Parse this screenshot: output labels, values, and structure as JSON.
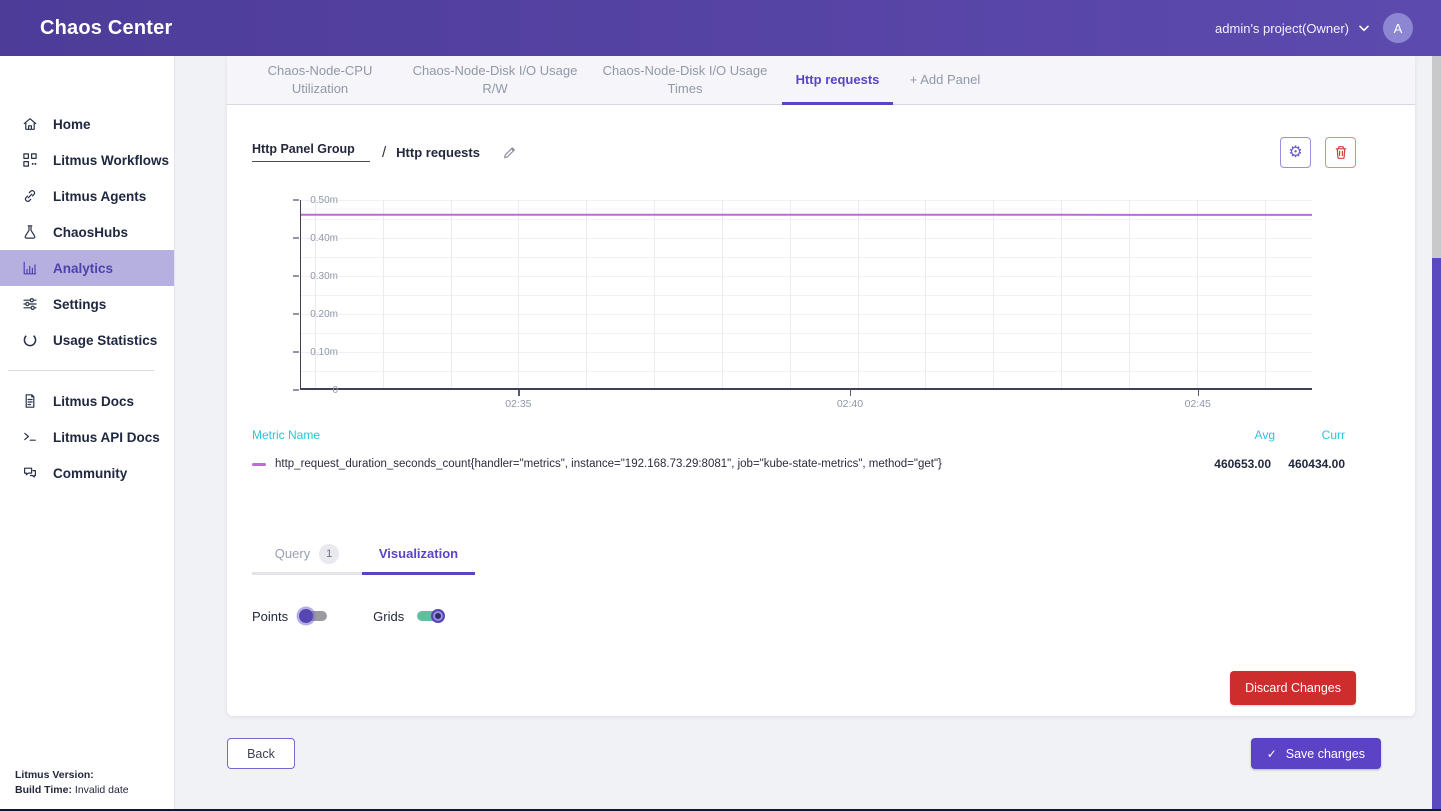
{
  "header": {
    "brand": "Chaos Center",
    "project": "admin's project(Owner)",
    "avatar": "A"
  },
  "sidebar": {
    "items": [
      {
        "id": "home",
        "label": "Home",
        "icon": "home-icon",
        "active": false
      },
      {
        "id": "workflows",
        "label": "Litmus Workflows",
        "icon": "workflows-icon",
        "active": false
      },
      {
        "id": "agents",
        "label": "Litmus Agents",
        "icon": "link-icon",
        "active": false
      },
      {
        "id": "chaoshubs",
        "label": "ChaosHubs",
        "icon": "flask-icon",
        "active": false
      },
      {
        "id": "analytics",
        "label": "Analytics",
        "icon": "bar-chart-icon",
        "active": true
      },
      {
        "id": "settings",
        "label": "Settings",
        "icon": "sliders-icon",
        "active": false
      },
      {
        "id": "usage",
        "label": "Usage Statistics",
        "icon": "loader-circle-icon",
        "active": false
      }
    ],
    "docs_items": [
      {
        "id": "docs",
        "label": "Litmus Docs",
        "icon": "document-icon",
        "active": false
      },
      {
        "id": "apidocs",
        "label": "Litmus API Docs",
        "icon": "terminal-icon",
        "active": false
      },
      {
        "id": "community",
        "label": "Community",
        "icon": "chat-bubbles-icon",
        "active": false
      }
    ],
    "version_label": "Litmus Version:",
    "build_label": "Build Time:",
    "build_value": "Invalid date"
  },
  "tabs": {
    "items": [
      {
        "label": "Chaos-Node-CPU Utilization",
        "active": false
      },
      {
        "label": "Chaos-Node-Disk I/O Usage R/W",
        "active": false
      },
      {
        "label": "Chaos-Node-Disk I/O Usage Times",
        "active": false
      },
      {
        "label": "Http requests",
        "active": true
      },
      {
        "label": "+ Add Panel",
        "active": false
      }
    ]
  },
  "panel": {
    "group_name": "Http Panel Group",
    "separator": "/",
    "panel_name": "Http requests"
  },
  "legend": {
    "metric_header": "Metric Name",
    "avg_header": "Avg",
    "curr_header": "Curr"
  },
  "subtabs": {
    "query_label": "Query",
    "query_count": "1",
    "visualization_label": "Visualization"
  },
  "toggles": {
    "points_label": "Points",
    "points_on": false,
    "grids_label": "Grids",
    "grids_on": true
  },
  "buttons": {
    "discard": "Discard Changes",
    "back": "Back",
    "save": "Save changes"
  },
  "colors": {
    "accent_purple": "#5b44c4",
    "header_purple": "#54419e",
    "legend_cyan": "#2bc4da",
    "danger_red": "#cd2d2d",
    "toggle_green": "#62bd9f",
    "series_line": "#c06ad8"
  },
  "chart_data": {
    "type": "line",
    "title": "",
    "xlabel": "",
    "ylabel": "",
    "x_ticks": [
      "02:35",
      "02:40",
      "02:45"
    ],
    "y_ticks": [
      "0.50m",
      "0.40m",
      "0.30m",
      "0.20m",
      "0.10m",
      "0"
    ],
    "y_max": 500000,
    "ylim": [
      0,
      500000
    ],
    "grid": true,
    "legend_position": "bottom",
    "series": [
      {
        "name": "http_request_duration_seconds_count{handler=\"metrics\", instance=\"192.168.73.29:8081\", job=\"kube-state-metrics\", method=\"get\"}",
        "color": "#c06ad8",
        "values": [
          460653,
          460650,
          460648,
          460640,
          460434
        ],
        "avg": "460653.00",
        "curr": "460434.00"
      }
    ]
  }
}
